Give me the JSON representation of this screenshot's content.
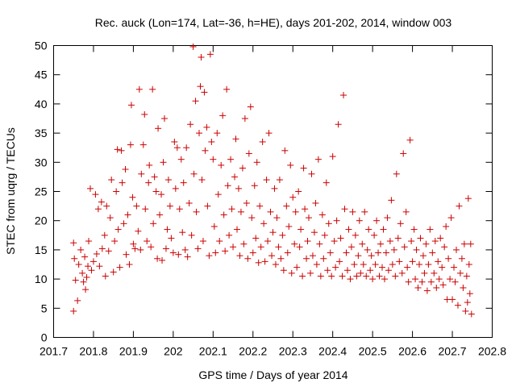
{
  "chart_data": {
    "type": "scatter",
    "title": "Rec. auck (Lon=174, Lat=-36, h=HE), days 201-202, 2014, window 003",
    "xlabel": "GPS time / Days of year 2014",
    "ylabel": "STEC from uqrg / TECUs",
    "xlim": [
      201.7,
      202.8
    ],
    "ylim": [
      0,
      50
    ],
    "xticks": [
      "201.7",
      "201.8",
      "201.9",
      "202",
      "202.1",
      "202.2",
      "202.3",
      "202.4",
      "202.5",
      "202.6",
      "202.7",
      "202.8"
    ],
    "yticks": [
      "0",
      "5",
      "10",
      "15",
      "20",
      "25",
      "30",
      "35",
      "40",
      "45",
      "50"
    ],
    "marker": "plus",
    "color": "#cc0000",
    "series": [
      {
        "name": "STEC",
        "points": [
          [
            201.75,
            16.2
          ],
          [
            201.752,
            13.5
          ],
          [
            201.755,
            9.8
          ],
          [
            201.75,
            4.5
          ],
          [
            201.76,
            6.3
          ],
          [
            201.763,
            12.5
          ],
          [
            201.768,
            15.0
          ],
          [
            201.772,
            11.0
          ],
          [
            201.775,
            9.5
          ],
          [
            201.778,
            13.8
          ],
          [
            201.78,
            8.2
          ],
          [
            201.783,
            10.3
          ],
          [
            201.786,
            12.2
          ],
          [
            201.788,
            16.5
          ],
          [
            201.792,
            25.5
          ],
          [
            201.795,
            11.5
          ],
          [
            201.8,
            13.0
          ],
          [
            201.805,
            24.5
          ],
          [
            201.808,
            14.3
          ],
          [
            201.812,
            22.0
          ],
          [
            201.815,
            12.2
          ],
          [
            201.82,
            23.2
          ],
          [
            201.822,
            15.2
          ],
          [
            201.828,
            17.5
          ],
          [
            201.83,
            10.5
          ],
          [
            201.833,
            22.5
          ],
          [
            201.838,
            14.8
          ],
          [
            201.842,
            20.5
          ],
          [
            201.845,
            27.0
          ],
          [
            201.85,
            11.2
          ],
          [
            201.853,
            16.5
          ],
          [
            201.857,
            25.0
          ],
          [
            201.86,
            32.2
          ],
          [
            201.862,
            18.5
          ],
          [
            201.866,
            12.0
          ],
          [
            201.87,
            32.0
          ],
          [
            201.872,
            26.5
          ],
          [
            201.876,
            19.5
          ],
          [
            201.88,
            28.8
          ],
          [
            201.882,
            14.2
          ],
          [
            201.886,
            21.0
          ],
          [
            201.89,
            12.5
          ],
          [
            201.893,
            33.0
          ],
          [
            201.895,
            39.8
          ],
          [
            201.898,
            24.0
          ],
          [
            201.9,
            16.0
          ],
          [
            201.904,
            15.2
          ],
          [
            201.908,
            22.5
          ],
          [
            201.912,
            18.2
          ],
          [
            201.915,
            42.5
          ],
          [
            201.918,
            15.0
          ],
          [
            201.92,
            28.0
          ],
          [
            201.925,
            33.0
          ],
          [
            201.928,
            38.2
          ],
          [
            201.93,
            22.0
          ],
          [
            201.934,
            16.5
          ],
          [
            201.938,
            26.5
          ],
          [
            201.94,
            29.5
          ],
          [
            201.944,
            15.5
          ],
          [
            201.948,
            42.5
          ],
          [
            201.95,
            19.5
          ],
          [
            201.953,
            27.5
          ],
          [
            201.957,
            25.0
          ],
          [
            201.96,
            13.5
          ],
          [
            201.962,
            35.8
          ],
          [
            201.966,
            21.0
          ],
          [
            201.97,
            24.5
          ],
          [
            201.972,
            13.2
          ],
          [
            201.975,
            30.0
          ],
          [
            201.978,
            37.5
          ],
          [
            201.982,
            15.2
          ],
          [
            201.985,
            18.5
          ],
          [
            201.988,
            27.0
          ],
          [
            201.992,
            22.5
          ],
          [
            201.995,
            17.0
          ],
          [
            202.0,
            14.5
          ],
          [
            202.003,
            33.5
          ],
          [
            202.006,
            25.5
          ],
          [
            202.01,
            32.5
          ],
          [
            202.013,
            14.2
          ],
          [
            202.016,
            22.0
          ],
          [
            202.02,
            30.5
          ],
          [
            202.023,
            18.0
          ],
          [
            202.026,
            26.5
          ],
          [
            202.03,
            15.0
          ],
          [
            202.033,
            32.5
          ],
          [
            202.036,
            13.8
          ],
          [
            202.04,
            23.0
          ],
          [
            202.043,
            36.5
          ],
          [
            202.046,
            17.5
          ],
          [
            202.05,
            49.8
          ],
          [
            202.052,
            28.0
          ],
          [
            202.056,
            40.5
          ],
          [
            202.058,
            21.5
          ],
          [
            202.062,
            15.2
          ],
          [
            202.065,
            35.0
          ],
          [
            202.068,
            43.0
          ],
          [
            202.07,
            48.0
          ],
          [
            202.072,
            27.0
          ],
          [
            202.075,
            16.5
          ],
          [
            202.078,
            42.0
          ],
          [
            202.08,
            32.0
          ],
          [
            202.084,
            36.0
          ],
          [
            202.086,
            22.5
          ],
          [
            202.09,
            14.0
          ],
          [
            202.093,
            48.5
          ],
          [
            202.096,
            33.5
          ],
          [
            202.1,
            30.5
          ],
          [
            202.103,
            19.0
          ],
          [
            202.106,
            14.5
          ],
          [
            202.11,
            35.0
          ],
          [
            202.113,
            24.5
          ],
          [
            202.116,
            16.5
          ],
          [
            202.12,
            29.5
          ],
          [
            202.124,
            38.0
          ],
          [
            202.127,
            21.0
          ],
          [
            202.13,
            14.8
          ],
          [
            202.134,
            42.5
          ],
          [
            202.137,
            26.0
          ],
          [
            202.14,
            17.5
          ],
          [
            202.144,
            30.5
          ],
          [
            202.147,
            22.0
          ],
          [
            202.15,
            15.5
          ],
          [
            202.154,
            27.5
          ],
          [
            202.157,
            34.0
          ],
          [
            202.16,
            18.5
          ],
          [
            202.164,
            25.5
          ],
          [
            202.167,
            14.0
          ],
          [
            202.17,
            21.5
          ],
          [
            202.174,
            29.0
          ],
          [
            202.177,
            16.0
          ],
          [
            202.18,
            37.5
          ],
          [
            202.184,
            23.0
          ],
          [
            202.187,
            13.5
          ],
          [
            202.19,
            31.5
          ],
          [
            202.194,
            39.5
          ],
          [
            202.197,
            20.5
          ],
          [
            202.2,
            14.5
          ],
          [
            202.204,
            26.0
          ],
          [
            202.207,
            17.0
          ],
          [
            202.21,
            30.0
          ],
          [
            202.214,
            12.8
          ],
          [
            202.217,
            22.5
          ],
          [
            202.22,
            15.5
          ],
          [
            202.224,
            33.5
          ],
          [
            202.227,
            19.5
          ],
          [
            202.23,
            13.0
          ],
          [
            202.234,
            27.0
          ],
          [
            202.237,
            16.5
          ],
          [
            202.24,
            35.0
          ],
          [
            202.244,
            21.5
          ],
          [
            202.247,
            14.0
          ],
          [
            202.25,
            18.0
          ],
          [
            202.254,
            25.5
          ],
          [
            202.257,
            12.5
          ],
          [
            202.26,
            20.5
          ],
          [
            202.264,
            15.5
          ],
          [
            202.267,
            27.0
          ],
          [
            202.27,
            13.5
          ],
          [
            202.274,
            17.5
          ],
          [
            202.277,
            11.5
          ],
          [
            202.28,
            32.0
          ],
          [
            202.284,
            22.5
          ],
          [
            202.287,
            14.5
          ],
          [
            202.29,
            19.0
          ],
          [
            202.294,
            29.5
          ],
          [
            202.297,
            11.0
          ],
          [
            202.3,
            24.0
          ],
          [
            202.304,
            16.0
          ],
          [
            202.307,
            21.5
          ],
          [
            202.31,
            12.0
          ],
          [
            202.314,
            25.0
          ],
          [
            202.317,
            15.5
          ],
          [
            202.32,
            18.5
          ],
          [
            202.324,
            10.5
          ],
          [
            202.327,
            29.0
          ],
          [
            202.33,
            22.0
          ],
          [
            202.334,
            13.5
          ],
          [
            202.337,
            16.5
          ],
          [
            202.34,
            20.5
          ],
          [
            202.344,
            11.0
          ],
          [
            202.347,
            28.0
          ],
          [
            202.35,
            14.0
          ],
          [
            202.354,
            18.0
          ],
          [
            202.357,
            23.0
          ],
          [
            202.36,
            12.5
          ],
          [
            202.364,
            30.5
          ],
          [
            202.367,
            16.0
          ],
          [
            202.37,
            10.5
          ],
          [
            202.374,
            21.0
          ],
          [
            202.377,
            13.5
          ],
          [
            202.38,
            17.5
          ],
          [
            202.384,
            26.5
          ],
          [
            202.387,
            11.5
          ],
          [
            202.39,
            19.5
          ],
          [
            202.394,
            14.5
          ],
          [
            202.397,
            10.5
          ],
          [
            202.4,
            31.0
          ],
          [
            202.404,
            16.5
          ],
          [
            202.407,
            12.0
          ],
          [
            202.41,
            20.0
          ],
          [
            202.414,
            36.5
          ],
          [
            202.417,
            13.0
          ],
          [
            202.42,
            17.0
          ],
          [
            202.424,
            10.5
          ],
          [
            202.427,
            41.5
          ],
          [
            202.43,
            22.0
          ],
          [
            202.434,
            14.5
          ],
          [
            202.437,
            11.5
          ],
          [
            202.44,
            18.5
          ],
          [
            202.444,
            10.0
          ],
          [
            202.447,
            15.5
          ],
          [
            202.45,
            21.5
          ],
          [
            202.454,
            12.5
          ],
          [
            202.457,
            17.5
          ],
          [
            202.46,
            10.5
          ],
          [
            202.464,
            14.0
          ],
          [
            202.467,
            20.0
          ],
          [
            202.47,
            11.0
          ],
          [
            202.474,
            16.0
          ],
          [
            202.477,
            12.5
          ],
          [
            202.48,
            21.5
          ],
          [
            202.484,
            10.5
          ],
          [
            202.487,
            15.0
          ],
          [
            202.49,
            18.5
          ],
          [
            202.494,
            11.5
          ],
          [
            202.497,
            14.0
          ],
          [
            202.5,
            10.0
          ],
          [
            202.504,
            17.5
          ],
          [
            202.507,
            12.5
          ],
          [
            202.51,
            20.0
          ],
          [
            202.514,
            14.5
          ],
          [
            202.517,
            10.5
          ],
          [
            202.52,
            16.0
          ],
          [
            202.524,
            12.0
          ],
          [
            202.527,
            18.5
          ],
          [
            202.53,
            10.0
          ],
          [
            202.534,
            14.5
          ],
          [
            202.537,
            20.5
          ],
          [
            202.54,
            11.5
          ],
          [
            202.544,
            16.5
          ],
          [
            202.547,
            23.5
          ],
          [
            202.55,
            12.5
          ],
          [
            202.554,
            15.0
          ],
          [
            202.557,
            10.5
          ],
          [
            202.56,
            28.0
          ],
          [
            202.564,
            17.0
          ],
          [
            202.567,
            13.0
          ],
          [
            202.57,
            19.5
          ],
          [
            202.574,
            11.0
          ],
          [
            202.577,
            31.5
          ],
          [
            202.58,
            15.5
          ],
          [
            202.584,
            21.5
          ],
          [
            202.587,
            12.0
          ],
          [
            202.59,
            9.5
          ],
          [
            202.594,
            33.8
          ],
          [
            202.597,
            16.5
          ],
          [
            202.6,
            13.0
          ],
          [
            202.604,
            18.5
          ],
          [
            202.607,
            10.0
          ],
          [
            202.61,
            15.0
          ],
          [
            202.614,
            8.5
          ],
          [
            202.617,
            12.5
          ],
          [
            202.62,
            17.0
          ],
          [
            202.624,
            9.5
          ],
          [
            202.627,
            14.0
          ],
          [
            202.63,
            11.0
          ],
          [
            202.634,
            16.0
          ],
          [
            202.637,
            8.0
          ],
          [
            202.64,
            12.5
          ],
          [
            202.644,
            18.5
          ],
          [
            202.647,
            9.5
          ],
          [
            202.65,
            14.5
          ],
          [
            202.654,
            11.0
          ],
          [
            202.657,
            16.5
          ],
          [
            202.66,
            8.5
          ],
          [
            202.664,
            13.0
          ],
          [
            202.667,
            10.0
          ],
          [
            202.67,
            17.0
          ],
          [
            202.674,
            12.0
          ],
          [
            202.677,
            9.0
          ],
          [
            202.68,
            15.5
          ],
          [
            202.684,
            19.0
          ],
          [
            202.687,
            6.5
          ],
          [
            202.69,
            13.5
          ],
          [
            202.694,
            10.0
          ],
          [
            202.697,
            20.5
          ],
          [
            202.7,
            6.5
          ],
          [
            202.704,
            12.0
          ],
          [
            202.707,
            9.5
          ],
          [
            202.71,
            15.0
          ],
          [
            202.714,
            5.5
          ],
          [
            202.717,
            22.5
          ],
          [
            202.72,
            11.0
          ],
          [
            202.724,
            13.5
          ],
          [
            202.727,
            8.5
          ],
          [
            202.73,
            16.0
          ],
          [
            202.733,
            4.5
          ],
          [
            202.736,
            10.5
          ],
          [
            202.738,
            6.0
          ],
          [
            202.74,
            23.8
          ],
          [
            202.742,
            12.5
          ],
          [
            202.744,
            7.5
          ],
          [
            202.746,
            16.0
          ],
          [
            202.748,
            4.0
          ]
        ]
      }
    ]
  }
}
